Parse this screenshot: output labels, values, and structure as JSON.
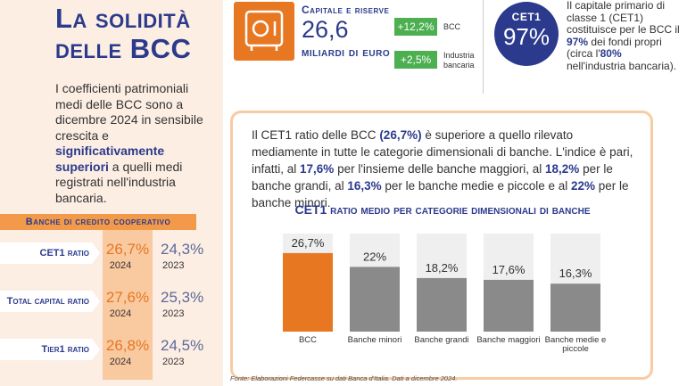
{
  "title": [
    "La solidità",
    "delle BCC"
  ],
  "intro": [
    "I coefficienti patrimoniali medi delle BCC sono a dicembre 2024 in sensibile crescita e ",
    "significativamente superiori",
    " a quelli medi registrati nell'industria bancaria."
  ],
  "table": {
    "header": "Banche di credito cooperativo",
    "rows": [
      {
        "label": "CET1 ratio",
        "value_2024": "26,7%",
        "year_2024": "2024",
        "value_2023": "24,3%",
        "year_2023": "2023"
      },
      {
        "label": "Total capital ratio",
        "value_2024": "27,6%",
        "year_2024": "2024",
        "value_2023": "25,3%",
        "year_2023": "2023"
      },
      {
        "label": "Tier1 ratio",
        "value_2024": "26,8%",
        "year_2024": "2024",
        "value_2023": "24,5%",
        "year_2023": "2023"
      }
    ]
  },
  "capital": {
    "label": "Capitale e riserve",
    "value": "26,6",
    "unit": "miliardi di euro",
    "changes": [
      {
        "value": "+12,2%",
        "label": "BCC"
      },
      {
        "value": "+2,5%",
        "label": "Industria bancaria"
      }
    ]
  },
  "cet1": {
    "badge_label": "CET1",
    "badge_value": "97%",
    "text": [
      "Il capitale primario di classe 1 (CET1) costituisce per le BCC il ",
      "97%",
      " dei fondi propri (circa l'",
      "80%",
      " nell'industria bancaria)."
    ]
  },
  "box_text": [
    "Il CET1 ratio delle BCC ",
    "(26,7%)",
    " è superiore a quello rilevato mediamente in tutte le categorie dimensionali di banche. L'indice è pari, infatti, al ",
    "17,6%",
    " per l'insieme delle banche maggiori, al ",
    "18,2%",
    " per le banche grandi, al ",
    "16,3%",
    " per le banche medie e piccole e al ",
    "22%",
    " per le banche minori."
  ],
  "chart_data": {
    "type": "bar",
    "title": "CET1 ratio medio per categorie dimensionali di banche",
    "categories": [
      "BCC",
      "Banche minori",
      "Banche grandi",
      "Banche maggiori",
      "Banche medie e piccole"
    ],
    "values": [
      26.7,
      22,
      18.2,
      17.6,
      16.3
    ],
    "value_labels": [
      "26,7%",
      "22%",
      "18,2%",
      "17,6%",
      "16,3%"
    ],
    "colors": [
      "#e87722",
      "#8a8a8a",
      "#8a8a8a",
      "#8a8a8a",
      "#8a8a8a"
    ]
  },
  "footnote": "Fonte: Elaborazioni Federcasse su dati Banca d'Italia. Dati a dicembre 2024."
}
